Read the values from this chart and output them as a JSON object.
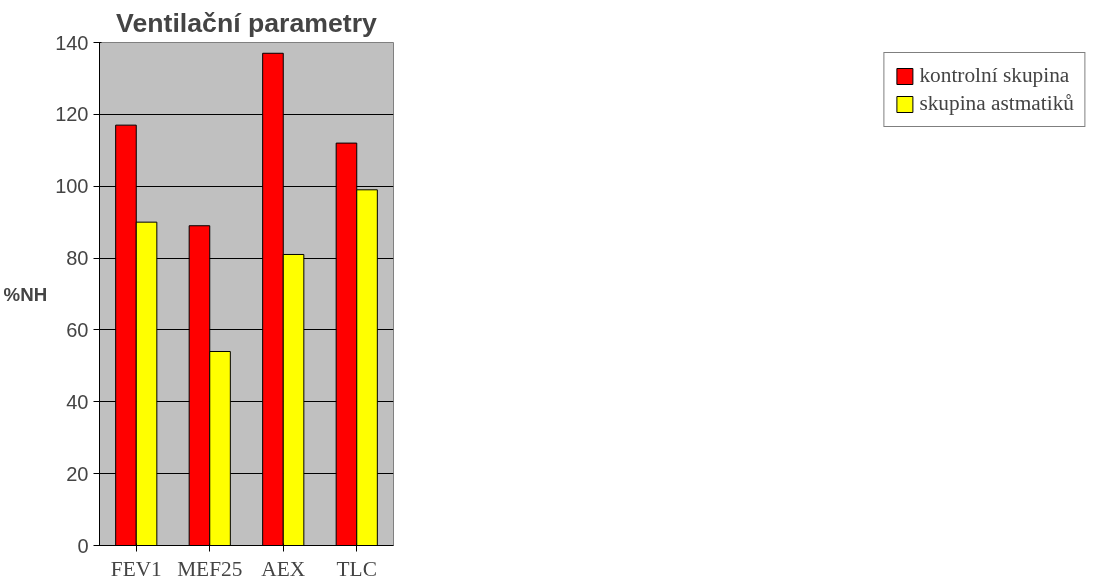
{
  "chart_data": {
    "type": "bar",
    "title": "Ventilační parametry",
    "ylabel": "%NH",
    "categories": [
      "FEV1",
      "MEF25",
      "AEX",
      "TLC"
    ],
    "series": [
      {
        "name": "kontrolní skupina",
        "color": "#ff0000",
        "values": [
          117,
          89,
          137,
          112
        ]
      },
      {
        "name": "skupina astmatiků",
        "color": "#ffff00",
        "values": [
          90,
          54,
          81,
          99
        ]
      }
    ],
    "ylim": [
      0,
      140
    ],
    "yticks": [
      0,
      20,
      40,
      60,
      80,
      100,
      120,
      140
    ],
    "grid": "y",
    "legend": "right"
  }
}
